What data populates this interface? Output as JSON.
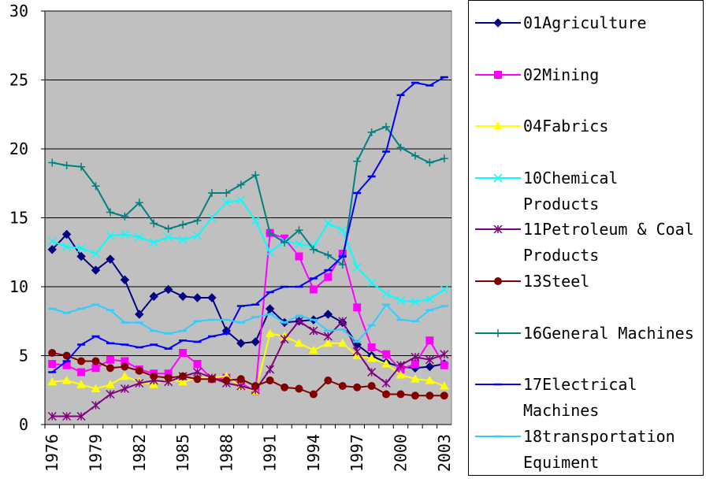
{
  "chart_data": {
    "type": "line",
    "categories": [
      "1976",
      null,
      null,
      "1979",
      null,
      null,
      "1982",
      null,
      null,
      "1985",
      null,
      null,
      "1988",
      null,
      null,
      "1991",
      null,
      null,
      "1994",
      null,
      null,
      "1997",
      null,
      null,
      "2000",
      null,
      null,
      "2003"
    ],
    "ylim": [
      0,
      30
    ],
    "yticks": [
      0,
      5,
      10,
      15,
      20,
      25,
      30
    ],
    "grid": true,
    "series": [
      {
        "name": "01Agriculture",
        "color": "#000080",
        "marker": "diamond",
        "values": [
          12.7,
          13.8,
          12.2,
          11.2,
          12.0,
          10.5,
          8.0,
          9.3,
          9.8,
          9.3,
          9.2,
          9.2,
          6.8,
          5.9,
          6.0,
          8.4,
          7.4,
          7.5,
          7.6,
          8.0,
          7.4,
          5.8,
          5.0,
          4.5,
          4.2,
          4.1,
          4.2,
          4.4
        ]
      },
      {
        "name": "02Mining",
        "color": "#ff00ff",
        "marker": "square",
        "values": [
          4.4,
          4.3,
          3.8,
          4.1,
          4.7,
          4.6,
          4.0,
          3.7,
          3.7,
          5.2,
          4.4,
          3.3,
          3.4,
          3.0,
          2.4,
          13.9,
          13.5,
          12.2,
          9.8,
          10.7,
          12.4,
          8.5,
          5.6,
          5.1,
          4.0,
          4.4,
          6.1,
          4.3
        ]
      },
      {
        "name": "04Fabrics",
        "color": "#ffff00",
        "marker": "triangle",
        "values": [
          3.1,
          3.2,
          2.9,
          2.6,
          2.9,
          3.5,
          3.1,
          2.9,
          3.3,
          3.1,
          3.4,
          3.4,
          3.5,
          2.8,
          2.4,
          6.6,
          6.4,
          5.9,
          5.4,
          5.9,
          5.9,
          5.0,
          4.8,
          4.4,
          3.6,
          3.3,
          3.2,
          2.8
        ]
      },
      {
        "name": "10Chemical Products",
        "color": "#00ffff",
        "marker": "x",
        "values": [
          13.3,
          12.9,
          12.8,
          12.4,
          13.7,
          13.8,
          13.6,
          13.2,
          13.6,
          13.4,
          13.7,
          15.0,
          16.1,
          16.3,
          14.8,
          12.5,
          13.3,
          13.1,
          12.9,
          14.6,
          14.1,
          11.4,
          10.3,
          9.5,
          9.0,
          8.9,
          9.1,
          9.8
        ]
      },
      {
        "name": "11Petroleum & Coal Products",
        "color": "#800080",
        "marker": "star",
        "values": [
          0.6,
          0.6,
          0.6,
          1.4,
          2.2,
          2.6,
          3.0,
          3.2,
          3.1,
          3.5,
          3.8,
          3.4,
          3.0,
          2.8,
          2.5,
          4.0,
          6.2,
          7.5,
          6.8,
          6.4,
          7.5,
          5.3,
          3.8,
          3.0,
          4.3,
          4.9,
          4.7,
          5.1
        ]
      },
      {
        "name": "13Steel",
        "color": "#800000",
        "marker": "circle",
        "values": [
          5.2,
          5.0,
          4.6,
          4.6,
          4.1,
          4.2,
          3.9,
          3.5,
          3.4,
          3.5,
          3.3,
          3.3,
          3.2,
          3.3,
          2.8,
          3.2,
          2.7,
          2.6,
          2.2,
          3.2,
          2.8,
          2.7,
          2.8,
          2.2,
          2.2,
          2.1,
          2.1,
          2.1
        ]
      },
      {
        "name": "16General Machines",
        "color": "#008080",
        "marker": "plus",
        "values": [
          19.0,
          18.8,
          18.7,
          17.3,
          15.4,
          15.1,
          16.1,
          14.6,
          14.2,
          14.5,
          14.8,
          16.8,
          16.8,
          17.4,
          18.1,
          13.9,
          13.2,
          14.1,
          12.7,
          12.3,
          11.6,
          19.1,
          21.2,
          21.6,
          20.1,
          19.5,
          19.0,
          19.3
        ]
      },
      {
        "name": "17Electrical Machines",
        "color": "#0000ff",
        "marker": "dash",
        "values": [
          3.8,
          4.6,
          5.8,
          6.4,
          5.9,
          5.8,
          5.6,
          5.8,
          5.5,
          6.1,
          6.0,
          6.4,
          6.6,
          8.6,
          8.7,
          9.6,
          10.0,
          10.0,
          10.6,
          11.2,
          12.2,
          16.8,
          18.0,
          19.8,
          23.9,
          24.8,
          24.6,
          25.2
        ]
      },
      {
        "name": "18transportation Equiment",
        "color": "#33ccff",
        "marker": "dash",
        "values": [
          8.4,
          8.1,
          8.4,
          8.7,
          8.3,
          7.4,
          7.4,
          6.8,
          6.6,
          6.8,
          7.5,
          7.6,
          7.6,
          7.4,
          7.8,
          8.0,
          7.4,
          7.9,
          7.6,
          6.8,
          6.9,
          6.0,
          7.2,
          8.7,
          7.6,
          7.5,
          8.3,
          8.6
        ]
      }
    ]
  }
}
